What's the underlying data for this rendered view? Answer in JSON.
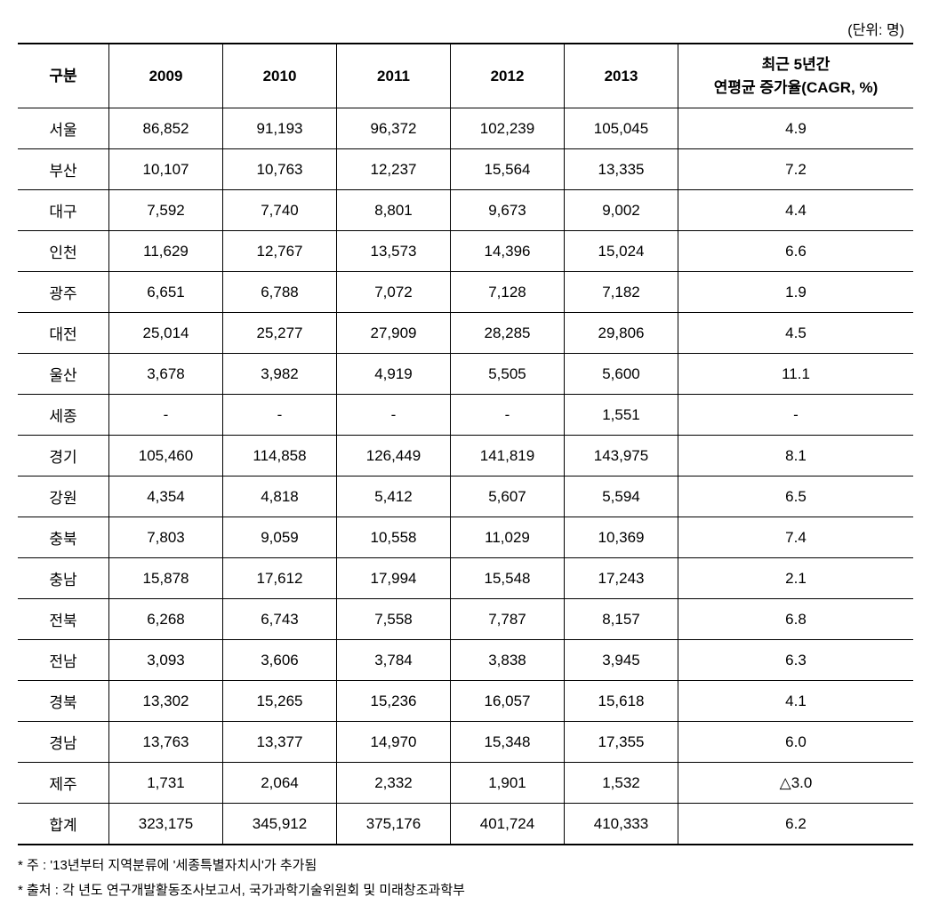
{
  "unit_label": "(단위: 명)",
  "table": {
    "columns": [
      "구분",
      "2009",
      "2010",
      "2011",
      "2012",
      "2013",
      "최근 5년간\n연평균 증가율(CAGR, %)"
    ],
    "rows": [
      {
        "region": "서울",
        "y2009": "86,852",
        "y2010": "91,193",
        "y2011": "96,372",
        "y2012": "102,239",
        "y2013": "105,045",
        "cagr": "4.9"
      },
      {
        "region": "부산",
        "y2009": "10,107",
        "y2010": "10,763",
        "y2011": "12,237",
        "y2012": "15,564",
        "y2013": "13,335",
        "cagr": "7.2"
      },
      {
        "region": "대구",
        "y2009": "7,592",
        "y2010": "7,740",
        "y2011": "8,801",
        "y2012": "9,673",
        "y2013": "9,002",
        "cagr": "4.4"
      },
      {
        "region": "인천",
        "y2009": "11,629",
        "y2010": "12,767",
        "y2011": "13,573",
        "y2012": "14,396",
        "y2013": "15,024",
        "cagr": "6.6"
      },
      {
        "region": "광주",
        "y2009": "6,651",
        "y2010": "6,788",
        "y2011": "7,072",
        "y2012": "7,128",
        "y2013": "7,182",
        "cagr": "1.9"
      },
      {
        "region": "대전",
        "y2009": "25,014",
        "y2010": "25,277",
        "y2011": "27,909",
        "y2012": "28,285",
        "y2013": "29,806",
        "cagr": "4.5"
      },
      {
        "region": "울산",
        "y2009": "3,678",
        "y2010": "3,982",
        "y2011": "4,919",
        "y2012": "5,505",
        "y2013": "5,600",
        "cagr": "11.1"
      },
      {
        "region": "세종",
        "y2009": "-",
        "y2010": "-",
        "y2011": "-",
        "y2012": "-",
        "y2013": "1,551",
        "cagr": "-"
      },
      {
        "region": "경기",
        "y2009": "105,460",
        "y2010": "114,858",
        "y2011": "126,449",
        "y2012": "141,819",
        "y2013": "143,975",
        "cagr": "8.1"
      },
      {
        "region": "강원",
        "y2009": "4,354",
        "y2010": "4,818",
        "y2011": "5,412",
        "y2012": "5,607",
        "y2013": "5,594",
        "cagr": "6.5"
      },
      {
        "region": "충북",
        "y2009": "7,803",
        "y2010": "9,059",
        "y2011": "10,558",
        "y2012": "11,029",
        "y2013": "10,369",
        "cagr": "7.4"
      },
      {
        "region": "충남",
        "y2009": "15,878",
        "y2010": "17,612",
        "y2011": "17,994",
        "y2012": "15,548",
        "y2013": "17,243",
        "cagr": "2.1"
      },
      {
        "region": "전북",
        "y2009": "6,268",
        "y2010": "6,743",
        "y2011": "7,558",
        "y2012": "7,787",
        "y2013": "8,157",
        "cagr": "6.8"
      },
      {
        "region": "전남",
        "y2009": "3,093",
        "y2010": "3,606",
        "y2011": "3,784",
        "y2012": "3,838",
        "y2013": "3,945",
        "cagr": "6.3"
      },
      {
        "region": "경북",
        "y2009": "13,302",
        "y2010": "15,265",
        "y2011": "15,236",
        "y2012": "16,057",
        "y2013": "15,618",
        "cagr": "4.1"
      },
      {
        "region": "경남",
        "y2009": "13,763",
        "y2010": "13,377",
        "y2011": "14,970",
        "y2012": "15,348",
        "y2013": "17,355",
        "cagr": "6.0"
      },
      {
        "region": "제주",
        "y2009": "1,731",
        "y2010": "2,064",
        "y2011": "2,332",
        "y2012": "1,901",
        "y2013": "1,532",
        "cagr": "△3.0"
      },
      {
        "region": "합계",
        "y2009": "323,175",
        "y2010": "345,912",
        "y2011": "375,176",
        "y2012": "401,724",
        "y2013": "410,333",
        "cagr": "6.2"
      }
    ]
  },
  "footnotes": [
    "* 주 : '13년부터 지역분류에 '세종특별자치시'가 추가됨",
    "* 출처 : 각 년도 연구개발활동조사보고서, 국가과학기술위원회 및 미래창조과학부"
  ],
  "style": {
    "font_family": "Malgun Gothic",
    "background_color": "#ffffff",
    "text_color": "#000000",
    "border_color": "#000000",
    "header_fontsize": 17,
    "cell_fontsize": 17,
    "unit_fontsize": 16,
    "footnote_fontsize": 15,
    "col_widths": {
      "region": 90,
      "year": 115,
      "cagr": "auto"
    }
  }
}
